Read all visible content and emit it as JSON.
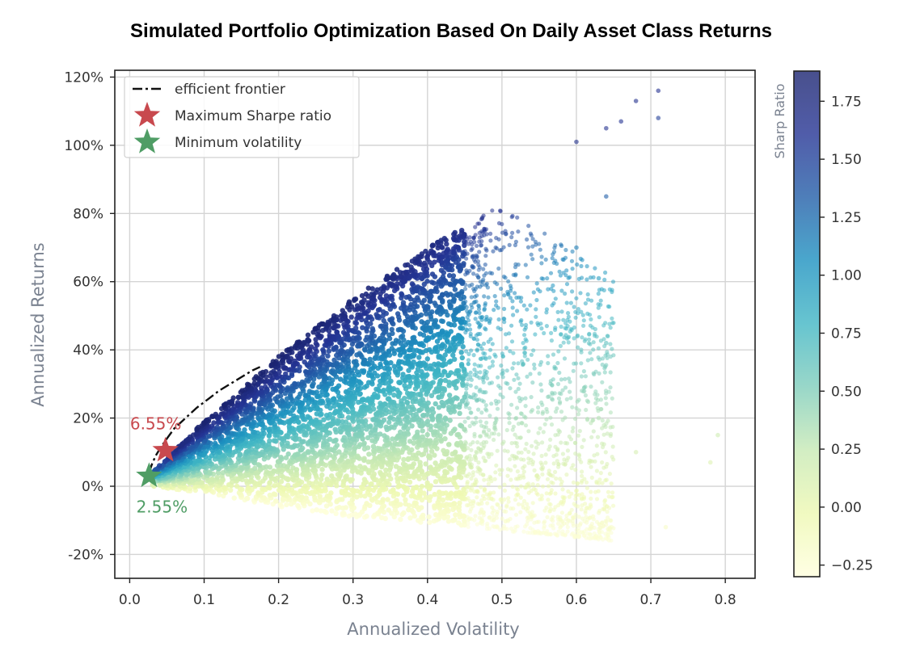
{
  "chart_data": {
    "type": "scatter",
    "title": "Simulated Portfolio Optimization Based On Daily Asset Class Returns",
    "xlabel": "Annualized Volatility",
    "ylabel": "Annualized Returns",
    "xlim": [
      -0.02,
      0.84
    ],
    "ylim": [
      -0.27,
      1.22
    ],
    "xticks": [
      "0.0",
      "0.1",
      "0.2",
      "0.3",
      "0.4",
      "0.5",
      "0.6",
      "0.7",
      "0.8"
    ],
    "xtick_values": [
      0.0,
      0.1,
      0.2,
      0.3,
      0.4,
      0.5,
      0.6,
      0.7,
      0.8
    ],
    "yticks": [
      "-20%",
      "0%",
      "20%",
      "40%",
      "60%",
      "80%",
      "100%",
      "120%"
    ],
    "ytick_values": [
      -0.2,
      0.0,
      0.2,
      0.4,
      0.6,
      0.8,
      1.0,
      1.2
    ],
    "grid": true,
    "legend_position": "top-left",
    "legend": [
      {
        "label": "efficient frontier",
        "marker": "dash-dot-line",
        "color": "#111111"
      },
      {
        "label": "Maximum Sharpe ratio",
        "marker": "star",
        "color": "#c8494e"
      },
      {
        "label": "Minimum volatility",
        "marker": "star",
        "color": "#4f9d65"
      }
    ],
    "efficient_frontier": {
      "x": [
        0.026,
        0.03,
        0.035,
        0.042,
        0.05,
        0.06,
        0.075,
        0.09,
        0.105,
        0.12,
        0.135,
        0.15,
        0.165,
        0.175
      ],
      "y": [
        0.04,
        0.065,
        0.09,
        0.115,
        0.14,
        0.17,
        0.2,
        0.23,
        0.255,
        0.28,
        0.3,
        0.32,
        0.34,
        0.35
      ]
    },
    "max_sharpe": {
      "x": 0.048,
      "y": 0.105,
      "label": "6.55%",
      "color": "#c8494e"
    },
    "min_volatility": {
      "x": 0.026,
      "y": 0.03,
      "label": "2.55%",
      "color": "#4f9d65"
    },
    "scatter_cloud": {
      "description_free_bounds": true,
      "upper_edge": {
        "x": [
          0.03,
          0.1,
          0.2,
          0.3,
          0.4,
          0.48
        ],
        "y": [
          0.04,
          0.19,
          0.38,
          0.55,
          0.7,
          0.8
        ]
      },
      "lower_edge": {
        "x": [
          0.03,
          0.1,
          0.2,
          0.3,
          0.4,
          0.5
        ],
        "y": [
          0.0,
          -0.02,
          -0.06,
          -0.09,
          -0.11,
          -0.13
        ]
      },
      "outliers": [
        {
          "x": 0.71,
          "y": 1.16
        },
        {
          "x": 0.68,
          "y": 1.13
        },
        {
          "x": 0.71,
          "y": 1.08
        },
        {
          "x": 0.66,
          "y": 1.07
        },
        {
          "x": 0.64,
          "y": 1.05
        },
        {
          "x": 0.6,
          "y": 1.01
        },
        {
          "x": 0.64,
          "y": 0.85
        },
        {
          "x": 0.6,
          "y": 0.7
        },
        {
          "x": 0.63,
          "y": 0.61
        },
        {
          "x": 0.64,
          "y": 0.42
        },
        {
          "x": 0.63,
          "y": 0.2
        },
        {
          "x": 0.79,
          "y": 0.15
        },
        {
          "x": 0.78,
          "y": 0.07
        },
        {
          "x": 0.68,
          "y": 0.1
        },
        {
          "x": 0.72,
          "y": -0.12
        }
      ]
    },
    "colorbar": {
      "label": "Sharp Ratio",
      "min": -0.3,
      "max": 1.88,
      "ticks": [
        "1.75",
        "1.50",
        "1.25",
        "1.00",
        "0.75",
        "0.50",
        "0.25",
        "0.00",
        "−0.25"
      ],
      "tick_values": [
        1.75,
        1.5,
        1.25,
        1.0,
        0.75,
        0.5,
        0.25,
        0.0,
        -0.25
      ],
      "colors": [
        "#ffffdd",
        "#edf8b1",
        "#c7e9b4",
        "#7fcdbb",
        "#41b6c4",
        "#1d91c0",
        "#225ea8",
        "#253494",
        "#1b2470"
      ]
    }
  }
}
